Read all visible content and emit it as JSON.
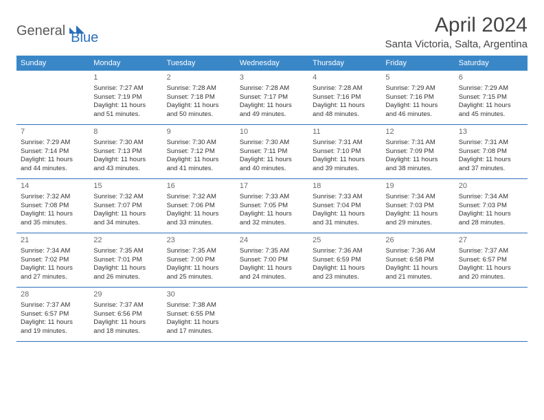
{
  "logo": {
    "general": "General",
    "blue": "Blue"
  },
  "title": "April 2024",
  "location": "Santa Victoria, Salta, Argentina",
  "header_bg_color": "#3a87c8",
  "row_border_color": "#2a6ebb",
  "weekdays": [
    "Sunday",
    "Monday",
    "Tuesday",
    "Wednesday",
    "Thursday",
    "Friday",
    "Saturday"
  ],
  "weeks": [
    [
      null,
      {
        "n": "1",
        "sr": "7:27 AM",
        "ss": "7:19 PM",
        "dl": "11 hours and 51 minutes."
      },
      {
        "n": "2",
        "sr": "7:28 AM",
        "ss": "7:18 PM",
        "dl": "11 hours and 50 minutes."
      },
      {
        "n": "3",
        "sr": "7:28 AM",
        "ss": "7:17 PM",
        "dl": "11 hours and 49 minutes."
      },
      {
        "n": "4",
        "sr": "7:28 AM",
        "ss": "7:16 PM",
        "dl": "11 hours and 48 minutes."
      },
      {
        "n": "5",
        "sr": "7:29 AM",
        "ss": "7:16 PM",
        "dl": "11 hours and 46 minutes."
      },
      {
        "n": "6",
        "sr": "7:29 AM",
        "ss": "7:15 PM",
        "dl": "11 hours and 45 minutes."
      }
    ],
    [
      {
        "n": "7",
        "sr": "7:29 AM",
        "ss": "7:14 PM",
        "dl": "11 hours and 44 minutes."
      },
      {
        "n": "8",
        "sr": "7:30 AM",
        "ss": "7:13 PM",
        "dl": "11 hours and 43 minutes."
      },
      {
        "n": "9",
        "sr": "7:30 AM",
        "ss": "7:12 PM",
        "dl": "11 hours and 41 minutes."
      },
      {
        "n": "10",
        "sr": "7:30 AM",
        "ss": "7:11 PM",
        "dl": "11 hours and 40 minutes."
      },
      {
        "n": "11",
        "sr": "7:31 AM",
        "ss": "7:10 PM",
        "dl": "11 hours and 39 minutes."
      },
      {
        "n": "12",
        "sr": "7:31 AM",
        "ss": "7:09 PM",
        "dl": "11 hours and 38 minutes."
      },
      {
        "n": "13",
        "sr": "7:31 AM",
        "ss": "7:08 PM",
        "dl": "11 hours and 37 minutes."
      }
    ],
    [
      {
        "n": "14",
        "sr": "7:32 AM",
        "ss": "7:08 PM",
        "dl": "11 hours and 35 minutes."
      },
      {
        "n": "15",
        "sr": "7:32 AM",
        "ss": "7:07 PM",
        "dl": "11 hours and 34 minutes."
      },
      {
        "n": "16",
        "sr": "7:32 AM",
        "ss": "7:06 PM",
        "dl": "11 hours and 33 minutes."
      },
      {
        "n": "17",
        "sr": "7:33 AM",
        "ss": "7:05 PM",
        "dl": "11 hours and 32 minutes."
      },
      {
        "n": "18",
        "sr": "7:33 AM",
        "ss": "7:04 PM",
        "dl": "11 hours and 31 minutes."
      },
      {
        "n": "19",
        "sr": "7:34 AM",
        "ss": "7:03 PM",
        "dl": "11 hours and 29 minutes."
      },
      {
        "n": "20",
        "sr": "7:34 AM",
        "ss": "7:03 PM",
        "dl": "11 hours and 28 minutes."
      }
    ],
    [
      {
        "n": "21",
        "sr": "7:34 AM",
        "ss": "7:02 PM",
        "dl": "11 hours and 27 minutes."
      },
      {
        "n": "22",
        "sr": "7:35 AM",
        "ss": "7:01 PM",
        "dl": "11 hours and 26 minutes."
      },
      {
        "n": "23",
        "sr": "7:35 AM",
        "ss": "7:00 PM",
        "dl": "11 hours and 25 minutes."
      },
      {
        "n": "24",
        "sr": "7:35 AM",
        "ss": "7:00 PM",
        "dl": "11 hours and 24 minutes."
      },
      {
        "n": "25",
        "sr": "7:36 AM",
        "ss": "6:59 PM",
        "dl": "11 hours and 23 minutes."
      },
      {
        "n": "26",
        "sr": "7:36 AM",
        "ss": "6:58 PM",
        "dl": "11 hours and 21 minutes."
      },
      {
        "n": "27",
        "sr": "7:37 AM",
        "ss": "6:57 PM",
        "dl": "11 hours and 20 minutes."
      }
    ],
    [
      {
        "n": "28",
        "sr": "7:37 AM",
        "ss": "6:57 PM",
        "dl": "11 hours and 19 minutes."
      },
      {
        "n": "29",
        "sr": "7:37 AM",
        "ss": "6:56 PM",
        "dl": "11 hours and 18 minutes."
      },
      {
        "n": "30",
        "sr": "7:38 AM",
        "ss": "6:55 PM",
        "dl": "11 hours and 17 minutes."
      },
      null,
      null,
      null,
      null
    ]
  ],
  "labels": {
    "sunrise": "Sunrise:",
    "sunset": "Sunset:",
    "daylight": "Daylight:"
  }
}
